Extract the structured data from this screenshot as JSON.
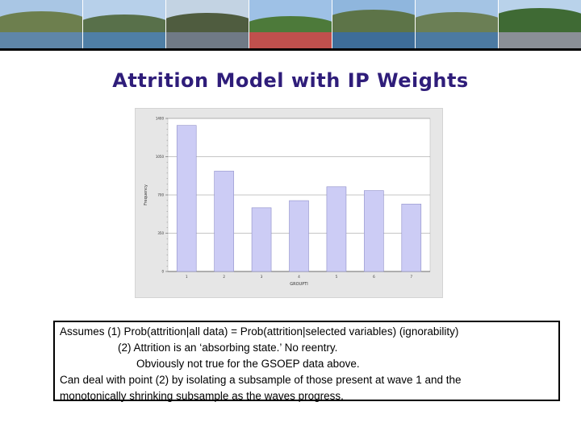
{
  "banner": {
    "photos": [
      "hilltop-town-photo",
      "harbor-photo",
      "lakeside-promenade-photo",
      "flower-garden-photo",
      "lake-panorama-photo",
      "lake-view-photo",
      "tree-promenade-photo"
    ]
  },
  "slide": {
    "title": "Attrition Model with IP Weights",
    "title_color": "#2f1d7a"
  },
  "chart_data": {
    "type": "bar",
    "categories": [
      "1",
      "2",
      "3",
      "4",
      "5",
      "6",
      "7"
    ],
    "values": [
      1336,
      918,
      583,
      648,
      775,
      740,
      617
    ],
    "ylabel": "Frequency",
    "xlabel": "GROUPTI",
    "ylim": [
      0,
      1400
    ],
    "yticks": [
      0,
      350,
      700,
      1050,
      1400
    ],
    "ytick_labels": [
      "0",
      "350",
      "700",
      "1050",
      "1400"
    ],
    "grid": true,
    "bar_color": "#ccccf5"
  },
  "notes": {
    "lines": [
      "Assumes (1) Prob(attrition|all data) = Prob(attrition|selected variables) (ignorability)",
      "(2) Attrition is an ‘absorbing state.’ No reentry.",
      "Obviously not true for the GSOEP data above.",
      "Can deal with point (2) by isolating a subsample of those present at wave 1 and the",
      "monotonically shrinking subsample as the waves progress."
    ]
  }
}
